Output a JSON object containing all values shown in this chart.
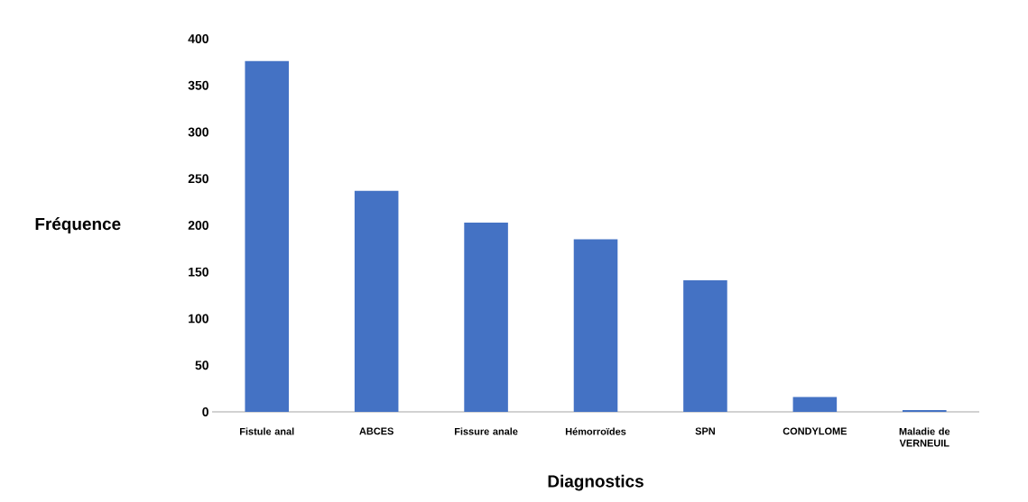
{
  "chart_data": {
    "type": "bar",
    "xlabel": "Diagnostics",
    "ylabel": "Fréquence",
    "categories": [
      "Fistule anal",
      "ABCES",
      "Fissure anale",
      "Hémorroïdes",
      "SPN",
      "CONDYLOME",
      "Maladie de VERNEUIL"
    ],
    "values": [
      376,
      237,
      203,
      185,
      141,
      16,
      2
    ],
    "color": "#4472c4",
    "ylim": [
      0,
      400
    ],
    "yticks": [
      0,
      50,
      100,
      150,
      200,
      250,
      300,
      350,
      400
    ]
  }
}
